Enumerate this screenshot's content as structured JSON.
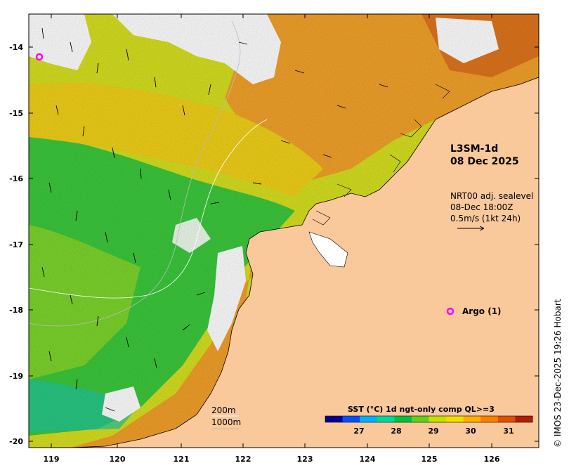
{
  "map": {
    "product_label": "L3SM-1d",
    "date_label": "08 Dec 2025",
    "current_product": "NRT00 adj. sealevel",
    "current_time": "08-Dec 18:00Z",
    "current_scale": "0.5m/s (1kt 24h)",
    "argo_label": "Argo (1)",
    "isobath_200": "200m",
    "isobath_1000": "1000m",
    "credit": "© IMOS 23-Dec-2025 19:26 Hobart",
    "lat_ticks": [
      "-14",
      "-15",
      "-16",
      "-17",
      "-18",
      "-19",
      "-20"
    ],
    "lon_ticks": [
      "119",
      "120",
      "121",
      "122",
      "123",
      "124",
      "125",
      "126"
    ],
    "colorbar": {
      "title": "SST (°C) 1d ngt-only comp QL>=3",
      "ticks": [
        "27",
        "28",
        "29",
        "30",
        "31"
      ],
      "colors": [
        "#00008f",
        "#0050ff",
        "#00b0ff",
        "#00d8a0",
        "#00c040",
        "#60d020",
        "#c8e000",
        "#f0e000",
        "#ffb000",
        "#ff8000",
        "#e05000",
        "#b02000"
      ]
    },
    "colors": {
      "land": "#f9c89b",
      "sea_warm": "#f0b020",
      "sea_green": "#2cc040",
      "sea_yellow": "#d8e020",
      "argo_marker": "#ff00ff"
    }
  }
}
